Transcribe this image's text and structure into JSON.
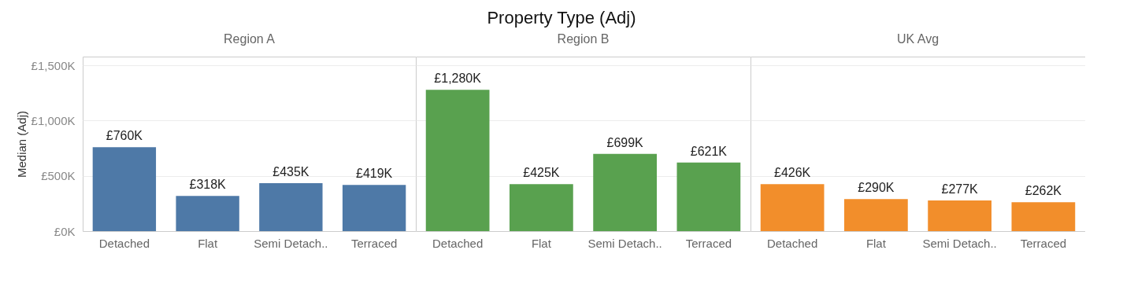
{
  "chart_data": [
    {
      "type": "bar",
      "subtitle": "Region A",
      "ylabel": "Median (Adj)",
      "categories": [
        "Detached",
        "Flat",
        "Semi Detach..",
        "Terraced"
      ],
      "values": [
        760,
        318,
        435,
        419
      ],
      "value_labels": [
        "£760K",
        "£318K",
        "£435K",
        "£419K"
      ],
      "color": "#4e79a7",
      "ylim": [
        0,
        1580
      ],
      "yticks": [
        {
          "value": 0,
          "label": "£0K"
        },
        {
          "value": 500,
          "label": "£500K"
        },
        {
          "value": 1000,
          "label": "£1,000K"
        },
        {
          "value": 1500,
          "label": "£1,500K"
        }
      ],
      "grid": "y"
    },
    {
      "type": "bar",
      "title": "Property Type (Adj)",
      "subtitle": "Region B",
      "categories": [
        "Detached",
        "Flat",
        "Semi Detach..",
        "Terraced"
      ],
      "values": [
        1280,
        425,
        699,
        621
      ],
      "value_labels": [
        "£1,280K",
        "£425K",
        "£699K",
        "£621K"
      ],
      "color": "#59a14f",
      "ylim": [
        0,
        1580
      ],
      "yticks": [
        {
          "value": 0,
          "label": null
        },
        {
          "value": 500,
          "label": null
        },
        {
          "value": 1000,
          "label": null
        },
        {
          "value": 1500,
          "label": null
        }
      ],
      "grid": "y",
      "tick_labels": "x"
    },
    {
      "type": "bar",
      "subtitle": "UK Avg",
      "categories": [
        "Detached",
        "Flat",
        "Semi Detach..",
        "Terraced"
      ],
      "values": [
        426,
        290,
        277,
        262
      ],
      "value_labels": [
        "£426K",
        "£290K",
        "£277K",
        "£262K"
      ],
      "color": "#f28e2b",
      "ylim": [
        0,
        1580
      ],
      "yticks": [
        {
          "value": 0,
          "label": null
        },
        {
          "value": 500,
          "label": null
        },
        {
          "value": 1000,
          "label": null
        },
        {
          "value": 1500,
          "label": null
        }
      ],
      "grid": "y",
      "tick_labels": "x"
    }
  ]
}
